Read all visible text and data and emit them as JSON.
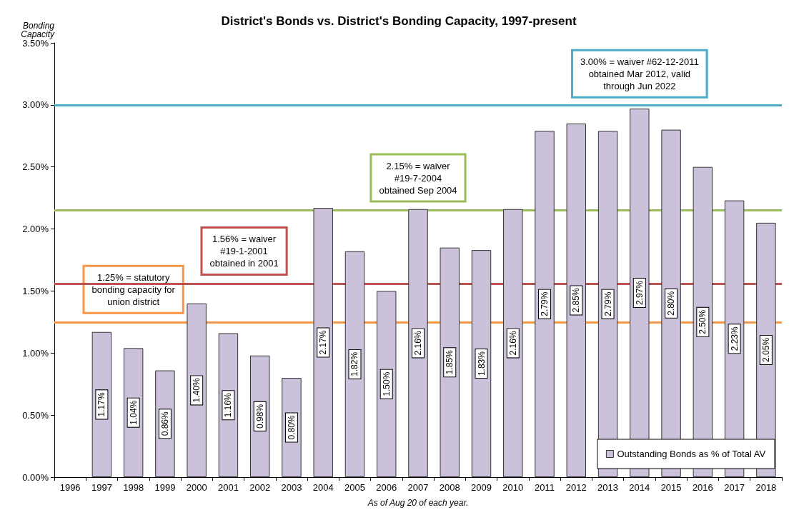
{
  "chart_data": {
    "type": "bar",
    "title": "District's Bonds vs. District's Bonding Capacity, 1997-present",
    "ylabel": "Bonding\nCapacity",
    "xlabel": "As of Aug 20 of each year.",
    "categories": [
      "1996",
      "1997",
      "1998",
      "1999",
      "2000",
      "2001",
      "2002",
      "2003",
      "2004",
      "2005",
      "2006",
      "2007",
      "2008",
      "2009",
      "2010",
      "2011",
      "2012",
      "2013",
      "2014",
      "2015",
      "2016",
      "2017",
      "2018"
    ],
    "series": [
      {
        "name": "Outstanding Bonds as % of Total AV",
        "color": "#ccc1da",
        "values": [
          null,
          1.17,
          1.04,
          0.86,
          1.4,
          1.16,
          0.98,
          0.8,
          2.17,
          1.82,
          1.5,
          2.16,
          1.85,
          1.83,
          2.16,
          2.79,
          2.85,
          2.79,
          2.97,
          2.8,
          2.5,
          2.23,
          2.05
        ],
        "value_labels": [
          null,
          "1.17%",
          "1.04%",
          "0.86%",
          "1.40%",
          "1.16%",
          "0.98%",
          "0.80%",
          "2.17%",
          "1.82%",
          "1.50%",
          "2.16%",
          "1.85%",
          "1.83%",
          "2.16%",
          "2.79%",
          "2.85%",
          "2.79%",
          "2.97%",
          "2.80%",
          "2.50%",
          "2.23%",
          "2.05%"
        ]
      }
    ],
    "ref_lines": [
      {
        "axis": "y",
        "value": 1.25,
        "label": "1.25% = statutory\nbonding capacity for\nunion district",
        "color": "#f79646"
      },
      {
        "axis": "y",
        "value": 1.56,
        "label": "1.56% = waiver\n#19-1-2001\nobtained in 2001",
        "color": "#c0504d"
      },
      {
        "axis": "y",
        "value": 2.15,
        "label": "2.15% = waiver\n#19-7-2004\nobtained Sep 2004",
        "color": "#9bbb59"
      },
      {
        "axis": "y",
        "value": 3.0,
        "label": "3.00% = waiver #62-12-2011\nobtained Mar 2012, valid\nthrough Jun 2022",
        "color": "#4bacc6"
      }
    ],
    "ylim": [
      0,
      3.5
    ],
    "yticks": [
      {
        "value": 0,
        "label": "0.00%"
      },
      {
        "value": 0.5,
        "label": "0.50%"
      },
      {
        "value": 1,
        "label": "1.00%"
      },
      {
        "value": 1.5,
        "label": "1.50%"
      },
      {
        "value": 2,
        "label": "2.00%"
      },
      {
        "value": 2.5,
        "label": "2.50%"
      },
      {
        "value": 3,
        "label": "3.00%"
      },
      {
        "value": 3.5,
        "label": "3.50%"
      }
    ],
    "grid": false,
    "legend": "bottom right"
  }
}
